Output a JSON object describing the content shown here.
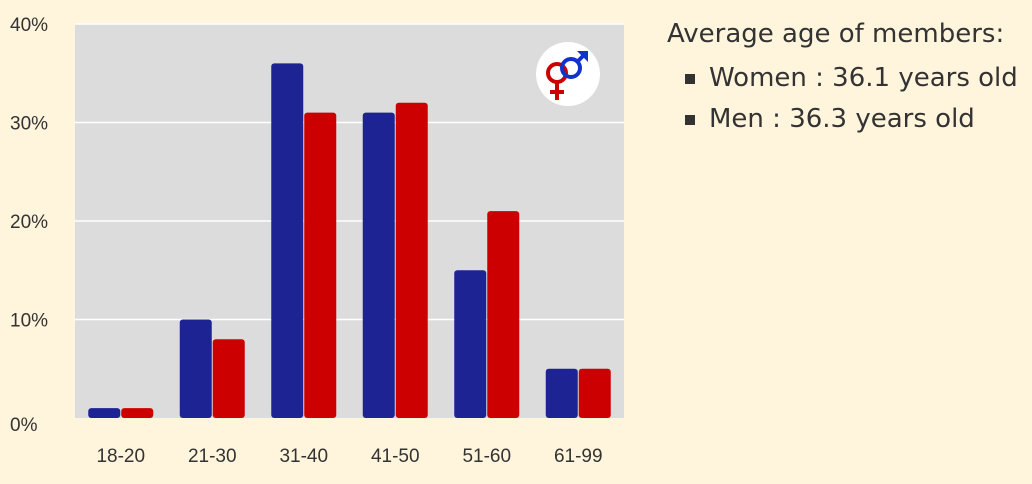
{
  "chart_data": {
    "type": "bar",
    "categories": [
      "18-20",
      "21-30",
      "31-40",
      "41-50",
      "51-60",
      "61-99"
    ],
    "series": [
      {
        "values": [
          1,
          10,
          36,
          31,
          15,
          5
        ]
      },
      {
        "values": [
          1,
          8,
          31,
          32,
          21,
          5
        ]
      }
    ],
    "y_tick_labels": [
      "0%",
      "10%",
      "20%",
      "30%",
      "40%"
    ],
    "ylim": [
      0,
      40
    ],
    "grid": true,
    "colors": [
      "#1d2393",
      "#cc0000"
    ],
    "plot_background": "#dcdcdc",
    "icon": "gender-male-female-icon"
  },
  "side_panel": {
    "title": "Average age of members:",
    "items": [
      {
        "label": "Women : 36.1 years old"
      },
      {
        "label": "Men : 36.3 years old"
      }
    ]
  }
}
